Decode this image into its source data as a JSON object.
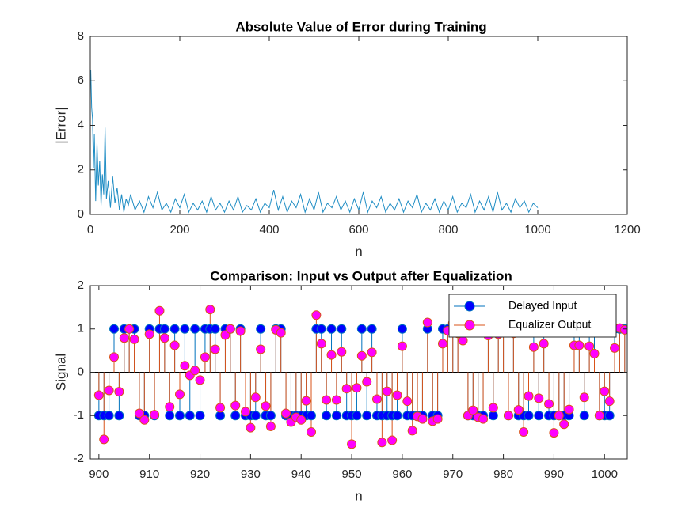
{
  "chart_data": [
    {
      "type": "line",
      "title": "Absolute Value of Error during Training",
      "x_label": "n",
      "y_label": "|Error|",
      "xlim": [
        0,
        1200
      ],
      "xticks": [
        0,
        200,
        400,
        600,
        800,
        1000,
        1200
      ],
      "ylim": [
        0,
        8
      ],
      "yticks": [
        0,
        2,
        4,
        6,
        8
      ],
      "x": [
        1,
        3,
        5,
        7,
        9,
        12,
        15,
        18,
        21,
        24,
        27,
        30,
        33,
        36,
        40,
        45,
        50,
        55,
        60,
        65,
        70,
        75,
        80,
        85,
        90,
        100,
        110,
        120,
        130,
        140,
        150,
        160,
        170,
        180,
        190,
        200,
        210,
        220,
        230,
        240,
        250,
        260,
        270,
        280,
        290,
        300,
        310,
        320,
        330,
        340,
        350,
        360,
        370,
        380,
        390,
        400,
        410,
        420,
        430,
        440,
        450,
        460,
        470,
        480,
        490,
        500,
        510,
        520,
        530,
        540,
        550,
        560,
        570,
        580,
        590,
        600,
        610,
        620,
        630,
        640,
        650,
        660,
        670,
        680,
        690,
        700,
        710,
        720,
        730,
        740,
        750,
        760,
        770,
        780,
        790,
        800,
        810,
        820,
        830,
        840,
        850,
        860,
        870,
        880,
        890,
        900,
        910,
        920,
        930,
        940,
        950,
        960,
        970,
        980,
        990,
        1000
      ],
      "series": [
        {
          "name": "|Error|",
          "color": "#1f8dc4",
          "values": [
            6.5,
            4.8,
            4.3,
            2.1,
            3.6,
            0.6,
            3.2,
            1.3,
            2.4,
            0.4,
            1.8,
            0.9,
            3.9,
            0.7,
            1.5,
            0.3,
            1.7,
            0.5,
            1.2,
            0.2,
            0.9,
            0.1,
            0.7,
            0.4,
            0.9,
            0.2,
            0.6,
            0.1,
            0.8,
            0.3,
            1.0,
            0.2,
            0.5,
            0.1,
            0.7,
            0.3,
            0.9,
            0.1,
            0.5,
            0.2,
            0.6,
            0.1,
            0.8,
            0.2,
            0.5,
            0.1,
            0.6,
            0.2,
            0.8,
            0.1,
            0.4,
            0.2,
            0.7,
            0.1,
            0.5,
            0.3,
            1.1,
            0.2,
            0.8,
            0.1,
            0.6,
            0.3,
            0.9,
            0.1,
            0.7,
            0.2,
            1.0,
            0.1,
            0.5,
            0.3,
            0.8,
            0.2,
            0.6,
            0.1,
            0.7,
            0.2,
            1.0,
            0.1,
            0.6,
            0.3,
            0.8,
            0.1,
            0.5,
            0.2,
            0.7,
            0.1,
            0.6,
            0.3,
            0.9,
            0.1,
            0.5,
            0.2,
            0.7,
            0.1,
            0.6,
            0.2,
            0.8,
            0.1,
            0.5,
            0.3,
            0.9,
            0.1,
            0.6,
            0.2,
            0.8,
            0.1,
            1.0,
            0.2,
            0.5,
            0.1,
            0.7,
            0.3,
            0.6,
            0.1,
            0.5,
            0.3
          ]
        }
      ]
    },
    {
      "type": "stem",
      "title": "Comparison: Input vs Output after Equalization",
      "x_label": "n",
      "y_label": "Signal",
      "xlim": [
        898.3,
        1004.5
      ],
      "xticks": [
        900,
        910,
        920,
        930,
        940,
        950,
        960,
        970,
        980,
        990,
        1000
      ],
      "ylim": [
        -2,
        2
      ],
      "yticks": [
        -2,
        -1,
        0,
        1,
        2
      ],
      "legend": "northeast",
      "x": [
        900,
        901,
        902,
        903,
        904,
        905,
        906,
        907,
        908,
        909,
        910,
        911,
        912,
        913,
        914,
        915,
        916,
        917,
        918,
        919,
        920,
        921,
        922,
        923,
        924,
        925,
        926,
        927,
        928,
        929,
        930,
        931,
        932,
        933,
        934,
        935,
        936,
        937,
        938,
        939,
        940,
        941,
        942,
        943,
        944,
        945,
        946,
        947,
        948,
        949,
        950,
        951,
        952,
        953,
        954,
        955,
        956,
        957,
        958,
        959,
        960,
        961,
        962,
        963,
        964,
        965,
        966,
        967,
        968,
        969,
        970,
        971,
        972,
        973,
        974,
        975,
        976,
        977,
        978,
        979,
        980,
        981,
        982,
        983,
        984,
        985,
        986,
        987,
        988,
        989,
        990,
        991,
        992,
        993,
        994,
        995,
        996,
        997,
        998,
        999,
        1000,
        1001,
        1002,
        1003,
        1004
      ],
      "series": [
        {
          "name": "Delayed Input",
          "color": "#0000ff",
          "stem_color": "#0072bd",
          "values": [
            -1,
            -1,
            -1,
            1,
            -1,
            1,
            1,
            1,
            -1,
            -1,
            1,
            -1,
            1,
            1,
            -1,
            1,
            -1,
            1,
            -1,
            1,
            -1,
            1,
            1,
            1,
            -1,
            1,
            1,
            -1,
            1,
            -1,
            -1,
            -1,
            1,
            -1,
            -1,
            1,
            1,
            -1,
            -1,
            -1,
            -1,
            -1,
            -1,
            1,
            1,
            -1,
            1,
            -1,
            1,
            -1,
            -1,
            -1,
            1,
            -1,
            1,
            -1,
            -1,
            -1,
            -1,
            -1,
            1,
            -1,
            -1,
            -1,
            -1,
            1,
            -1,
            -1,
            1,
            1,
            1,
            1,
            1,
            -1,
            -1,
            -1,
            -1,
            1,
            -1,
            1,
            1,
            -1,
            1,
            -1,
            -1,
            -1,
            1,
            -1,
            1,
            -1,
            -1,
            -1,
            -1,
            -1,
            1,
            1,
            -1,
            1,
            1,
            -1,
            -1,
            -1,
            1,
            1,
            1
          ]
        },
        {
          "name": "Equalizer Output",
          "color": "#ff00ff",
          "stem_color": "#d95319",
          "values": [
            -0.53,
            -1.55,
            -0.42,
            0.35,
            -0.45,
            0.79,
            1.0,
            0.76,
            -0.95,
            -1.1,
            0.88,
            -0.98,
            1.42,
            0.79,
            -0.8,
            0.62,
            -0.51,
            0.15,
            -0.07,
            0.04,
            -0.18,
            0.35,
            1.45,
            0.53,
            -0.82,
            0.86,
            1.0,
            -0.77,
            0.95,
            -0.91,
            -1.28,
            -0.58,
            0.53,
            -0.78,
            -1.25,
            0.98,
            0.91,
            -0.95,
            -1.15,
            -1.04,
            -1.1,
            -0.66,
            -1.38,
            1.32,
            0.66,
            -0.64,
            0.4,
            -0.64,
            0.47,
            -0.38,
            -1.66,
            -0.36,
            0.38,
            -0.22,
            0.46,
            -0.62,
            -1.62,
            -0.44,
            -1.57,
            -0.53,
            0.6,
            -0.67,
            -1.35,
            -1.02,
            -1.08,
            1.15,
            -1.13,
            -1.08,
            0.66,
            0.96,
            1.13,
            0.9,
            0.73,
            -1.0,
            -0.88,
            -1.04,
            -1.08,
            0.85,
            -0.82,
            0.88,
            0.95,
            -1.0,
            0.9,
            -0.87,
            -1.38,
            -0.55,
            0.58,
            -0.6,
            0.66,
            -0.73,
            -1.4,
            -1.0,
            -1.2,
            -0.86,
            0.62,
            0.62,
            -0.58,
            0.6,
            0.43,
            -1.0,
            -0.44,
            -0.67,
            0.56,
            1.02,
            0.98
          ]
        }
      ]
    }
  ]
}
